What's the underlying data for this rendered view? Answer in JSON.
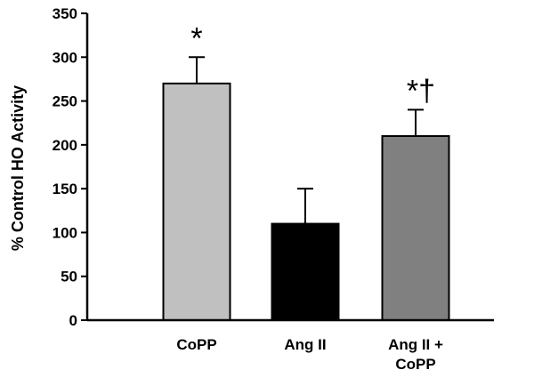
{
  "chart_data": {
    "type": "bar",
    "title": "",
    "xlabel": "",
    "ylabel": "% Control HO Activity",
    "ylim": [
      0,
      350
    ],
    "yticks": [
      0,
      50,
      100,
      150,
      200,
      250,
      300,
      350
    ],
    "grid": false,
    "legend": "none",
    "categories": [
      {
        "lines": [
          "CoPP"
        ]
      },
      {
        "lines": [
          "Ang II"
        ]
      },
      {
        "lines": [
          "Ang II +",
          "CoPP"
        ]
      }
    ],
    "values": [
      270,
      110,
      210
    ],
    "error_plus": [
      30,
      40,
      30
    ],
    "bar_colors": [
      "#c0c0c0",
      "#000000",
      "#808080"
    ],
    "annotations": [
      "*",
      "",
      "*†"
    ]
  }
}
